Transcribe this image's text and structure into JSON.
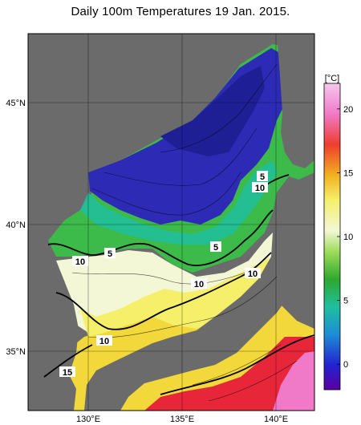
{
  "title": "Daily 100m Temperatures 19 Jan. 2015.",
  "lat_labels": [
    "45°N",
    "40°N",
    "35°N"
  ],
  "lon_labels": [
    "130°E",
    "135°E",
    "140°E"
  ],
  "contour_labels": [
    "5",
    "5",
    "5",
    "10",
    "10",
    "10",
    "10",
    "10",
    "15"
  ],
  "colorbar": {
    "unit": "[°C]",
    "ticks": [
      "20",
      "15",
      "10",
      "5",
      "0"
    ],
    "min": -2,
    "max": 22
  },
  "colors": {
    "land": "#6b6b6b",
    "background": "#ffffff",
    "cold": "#2d2bb6",
    "warm": "#e8263a"
  }
}
